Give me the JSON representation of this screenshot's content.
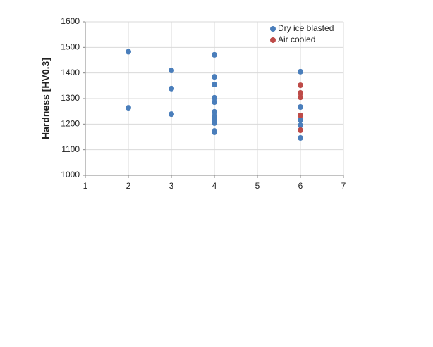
{
  "chart_data": {
    "type": "scatter",
    "y_label": "Hardness [HV0.3]",
    "series": [
      {
        "name": "Dry ice blasted",
        "color": "#4a7ebb",
        "x": [
          2,
          2,
          3,
          3,
          3,
          4,
          4,
          4,
          4,
          4,
          4,
          4,
          4,
          4,
          4,
          4,
          6,
          6,
          6,
          6,
          6
        ],
        "values": [
          1483,
          1264,
          1410,
          1339,
          1239,
          1471,
          1385,
          1355,
          1303,
          1286,
          1248,
          1231,
          1217,
          1204,
          1173,
          1168,
          1405,
          1267,
          1215,
          1195,
          1146
        ]
      },
      {
        "name": "Air cooled",
        "color": "#be4b48",
        "x": [
          6,
          6,
          6,
          6,
          6
        ],
        "values": [
          1352,
          1322,
          1305,
          1234,
          1176
        ]
      }
    ],
    "xlim": [
      1,
      7
    ],
    "xticks": [
      1,
      2,
      3,
      4,
      5,
      6,
      7
    ],
    "ylim": [
      1000,
      1600
    ],
    "yticks": [
      1000,
      1100,
      1200,
      1300,
      1400,
      1500,
      1600
    ],
    "grid": true,
    "legend": "upper right"
  }
}
